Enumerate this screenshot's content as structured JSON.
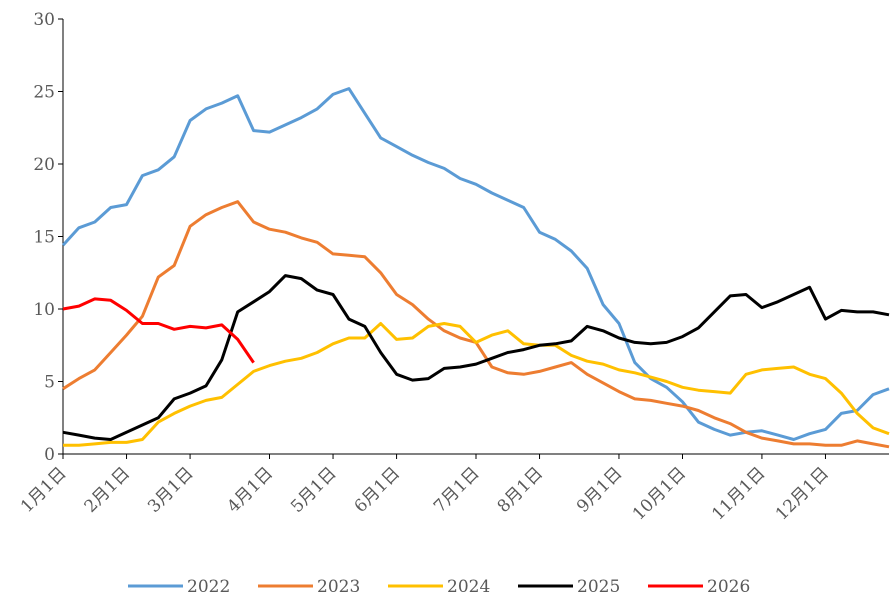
{
  "chart_data": {
    "type": "line",
    "categories": [
      "1月1日",
      null,
      null,
      null,
      "2月1日",
      null,
      null,
      null,
      "3月1日",
      null,
      null,
      null,
      null,
      "4月1日",
      null,
      null,
      null,
      "5月1日",
      null,
      null,
      null,
      "6月1日",
      null,
      null,
      null,
      null,
      "7月1日",
      null,
      null,
      null,
      "8月1日",
      null,
      null,
      null,
      null,
      "9月1日",
      null,
      null,
      null,
      "10月1日",
      null,
      null,
      null,
      null,
      "11月1日",
      null,
      null,
      null,
      "12月1日",
      null,
      null,
      null,
      null
    ],
    "series": [
      {
        "name": "2022",
        "color": "#5b9bd5",
        "values": [
          14.4,
          15.6,
          16.0,
          17.0,
          17.2,
          19.2,
          19.6,
          20.5,
          23.0,
          23.8,
          24.2,
          24.7,
          22.3,
          22.2,
          22.7,
          23.2,
          23.8,
          24.8,
          25.2,
          23.5,
          21.8,
          21.2,
          20.6,
          20.1,
          19.7,
          19.0,
          18.6,
          18.0,
          17.5,
          17.0,
          15.3,
          14.8,
          14.0,
          12.8,
          10.3,
          9.0,
          6.3,
          5.2,
          4.6,
          3.6,
          2.2,
          1.7,
          1.3,
          1.5,
          1.6,
          1.3,
          1.0,
          1.4,
          1.7,
          2.8,
          3.0,
          4.1,
          4.5
        ]
      },
      {
        "name": "2023",
        "color": "#ed7d31",
        "values": [
          4.5,
          5.2,
          5.8,
          7.0,
          8.2,
          9.5,
          12.2,
          13.0,
          15.7,
          16.5,
          17.0,
          17.4,
          16.0,
          15.5,
          15.3,
          14.9,
          14.6,
          13.8,
          13.7,
          13.6,
          12.5,
          11.0,
          10.3,
          9.3,
          8.5,
          8.0,
          7.7,
          6.0,
          5.6,
          5.5,
          5.7,
          6.0,
          6.3,
          5.5,
          4.9,
          4.3,
          3.8,
          3.7,
          3.5,
          3.3,
          3.0,
          2.5,
          2.1,
          1.5,
          1.1,
          0.9,
          0.7,
          0.7,
          0.6,
          0.6,
          0.9,
          0.7,
          0.5
        ]
      },
      {
        "name": "2024",
        "color": "#ffc000",
        "values": [
          0.6,
          0.6,
          0.7,
          0.8,
          0.8,
          1.0,
          2.2,
          2.8,
          3.3,
          3.7,
          3.9,
          4.8,
          5.7,
          6.1,
          6.4,
          6.6,
          7.0,
          7.6,
          8.0,
          8.0,
          9.0,
          7.9,
          8.0,
          8.8,
          9.0,
          8.8,
          7.7,
          8.2,
          8.5,
          7.6,
          7.5,
          7.5,
          6.8,
          6.4,
          6.2,
          5.8,
          5.6,
          5.3,
          5.0,
          4.6,
          4.4,
          4.3,
          4.2,
          5.5,
          5.8,
          5.9,
          6.0,
          5.5,
          5.2,
          4.2,
          2.8,
          1.8,
          1.4
        ]
      },
      {
        "name": "2025",
        "color": "#000000",
        "values": [
          1.5,
          1.3,
          1.1,
          1.0,
          1.5,
          2.0,
          2.5,
          3.8,
          4.2,
          4.7,
          6.5,
          9.8,
          10.5,
          11.2,
          12.3,
          12.1,
          11.3,
          11.0,
          9.3,
          8.8,
          7.0,
          5.5,
          5.1,
          5.2,
          5.9,
          6.0,
          6.2,
          6.6,
          7.0,
          7.2,
          7.5,
          7.6,
          7.8,
          8.8,
          8.5,
          8.0,
          7.7,
          7.6,
          7.7,
          8.1,
          8.7,
          9.8,
          10.9,
          11.0,
          10.1,
          10.5,
          11.0,
          11.5,
          9.3,
          9.9,
          9.8,
          9.8,
          9.6
        ]
      },
      {
        "name": "2026",
        "color": "#ff0000",
        "values": [
          10.0,
          10.2,
          10.7,
          10.6,
          9.9,
          9.0,
          9.0,
          8.6,
          8.8,
          8.7,
          8.9,
          7.9,
          6.3,
          null,
          null,
          null,
          null,
          null,
          null,
          null,
          null,
          null,
          null,
          null,
          null,
          null,
          null,
          null,
          null,
          null,
          null,
          null,
          null,
          null,
          null,
          null,
          null,
          null,
          null,
          null,
          null,
          null,
          null,
          null,
          null,
          null,
          null,
          null,
          null,
          null,
          null,
          null,
          null
        ]
      }
    ],
    "ylim": [
      0,
      30
    ],
    "yticks": [
      0,
      5,
      10,
      15,
      20,
      25,
      30
    ],
    "legend": "bottom"
  }
}
